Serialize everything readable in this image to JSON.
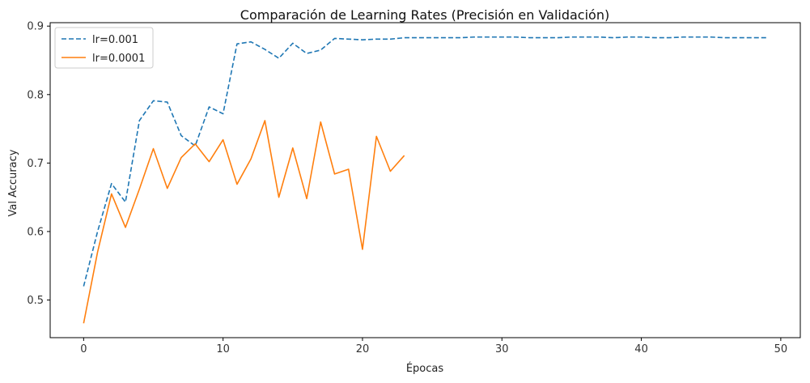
{
  "chart_data": {
    "type": "line",
    "title": "Comparación de Learning Rates (Precisión en Validación)",
    "xlabel": "Épocas",
    "ylabel": "Val Accuracy",
    "xlim": [
      -2.4,
      51.4
    ],
    "ylim": [
      0.445,
      0.905
    ],
    "xticks": [
      0,
      10,
      20,
      30,
      40,
      50
    ],
    "yticks": [
      0.5,
      0.6,
      0.7,
      0.8,
      0.9
    ],
    "grid": false,
    "legend_position": "top-left",
    "series": [
      {
        "name": "lr=0.001",
        "color": "#1f77b4",
        "dash": "dashed",
        "x": [
          0,
          1,
          2,
          3,
          4,
          5,
          6,
          7,
          8,
          9,
          10,
          11,
          12,
          13,
          14,
          15,
          16,
          17,
          18,
          19,
          20,
          21,
          22,
          23,
          24,
          25,
          26,
          27,
          28,
          29,
          30,
          31,
          32,
          33,
          34,
          35,
          36,
          37,
          38,
          39,
          40,
          41,
          42,
          43,
          44,
          45,
          46,
          47,
          48,
          49
        ],
        "values": [
          0.52,
          0.6,
          0.67,
          0.643,
          0.762,
          0.791,
          0.789,
          0.74,
          0.725,
          0.782,
          0.772,
          0.874,
          0.877,
          0.866,
          0.853,
          0.875,
          0.86,
          0.865,
          0.882,
          0.881,
          0.88,
          0.881,
          0.881,
          0.883,
          0.883,
          0.883,
          0.883,
          0.883,
          0.884,
          0.884,
          0.884,
          0.884,
          0.883,
          0.883,
          0.883,
          0.884,
          0.884,
          0.884,
          0.883,
          0.884,
          0.884,
          0.883,
          0.883,
          0.884,
          0.884,
          0.884,
          0.883,
          0.883,
          0.883,
          0.883
        ]
      },
      {
        "name": "lr=0.0001",
        "color": "#ff7f0e",
        "dash": "solid",
        "x": [
          0,
          1,
          2,
          3,
          4,
          5,
          6,
          7,
          8,
          9,
          10,
          11,
          12,
          13,
          14,
          15,
          16,
          17,
          18,
          19,
          20,
          21,
          22,
          23
        ],
        "values": [
          0.466,
          0.57,
          0.655,
          0.606,
          0.662,
          0.721,
          0.663,
          0.708,
          0.728,
          0.702,
          0.734,
          0.669,
          0.706,
          0.762,
          0.65,
          0.722,
          0.648,
          0.76,
          0.684,
          0.691,
          0.574,
          0.739,
          0.688,
          0.711
        ]
      }
    ]
  }
}
